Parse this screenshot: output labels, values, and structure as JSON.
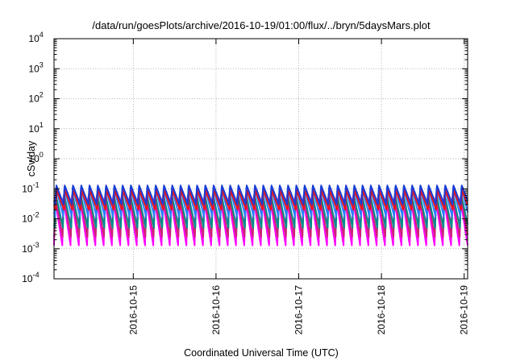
{
  "chart_data": {
    "type": "line",
    "title": "/data/run/goesPlots/archive/2016-10-19/01:00/flux/../bryn/5daysMars.plot",
    "xlabel": "Coordinated Universal Time (UTC)",
    "ylabel": "cSv/day",
    "x_scale": "time",
    "y_scale": "log",
    "xlim": [
      "2016-10-14T01:00",
      "2016-10-19T01:00"
    ],
    "ylim": [
      0.0001,
      10000
    ],
    "x_ticks": [
      "2016-10-15",
      "2016-10-16",
      "2016-10-17",
      "2016-10-18",
      "2016-10-19"
    ],
    "y_ticks": [
      {
        "value": 0.0001,
        "base": "10",
        "exp": "-4"
      },
      {
        "value": 0.001,
        "base": "10",
        "exp": "-3"
      },
      {
        "value": 0.01,
        "base": "10",
        "exp": "-2"
      },
      {
        "value": 0.1,
        "base": "10",
        "exp": "-1"
      },
      {
        "value": 1,
        "base": "10",
        "exp": "0"
      },
      {
        "value": 10,
        "base": "10",
        "exp": "1"
      },
      {
        "value": 100,
        "base": "10",
        "exp": "2"
      },
      {
        "value": 1000,
        "base": "10",
        "exp": "3"
      },
      {
        "value": 10000,
        "base": "10",
        "exp": "4"
      }
    ],
    "grid": true,
    "pattern": {
      "period_hours": 2.4,
      "note": "sawtooth spikes roughly every 2.4 hours, peaks near 0.1 cSv/day"
    },
    "series": [
      {
        "color": "#ff00ff",
        "peak": 0.05,
        "trough": 0.0013,
        "period_hours": 2.4,
        "phase_hours": 0.0
      },
      {
        "color": "#cc2277",
        "peak": 0.06,
        "trough": 0.0025,
        "period_hours": 2.4,
        "phase_hours": 0.1
      },
      {
        "color": "#008b8b",
        "peak": 0.07,
        "trough": 0.005,
        "period_hours": 2.4,
        "phase_hours": 0.2
      },
      {
        "color": "#2a7fff",
        "peak": 0.11,
        "trough": 0.012,
        "period_hours": 2.4,
        "phase_hours": 0.3
      },
      {
        "color": "#e8151b",
        "peak": 0.09,
        "trough": 0.02,
        "period_hours": 2.4,
        "phase_hours": 0.5
      },
      {
        "color": "#1a3bd6",
        "peak": 0.13,
        "trough": 0.03,
        "period_hours": 2.4,
        "phase_hours": 0.4
      }
    ]
  }
}
